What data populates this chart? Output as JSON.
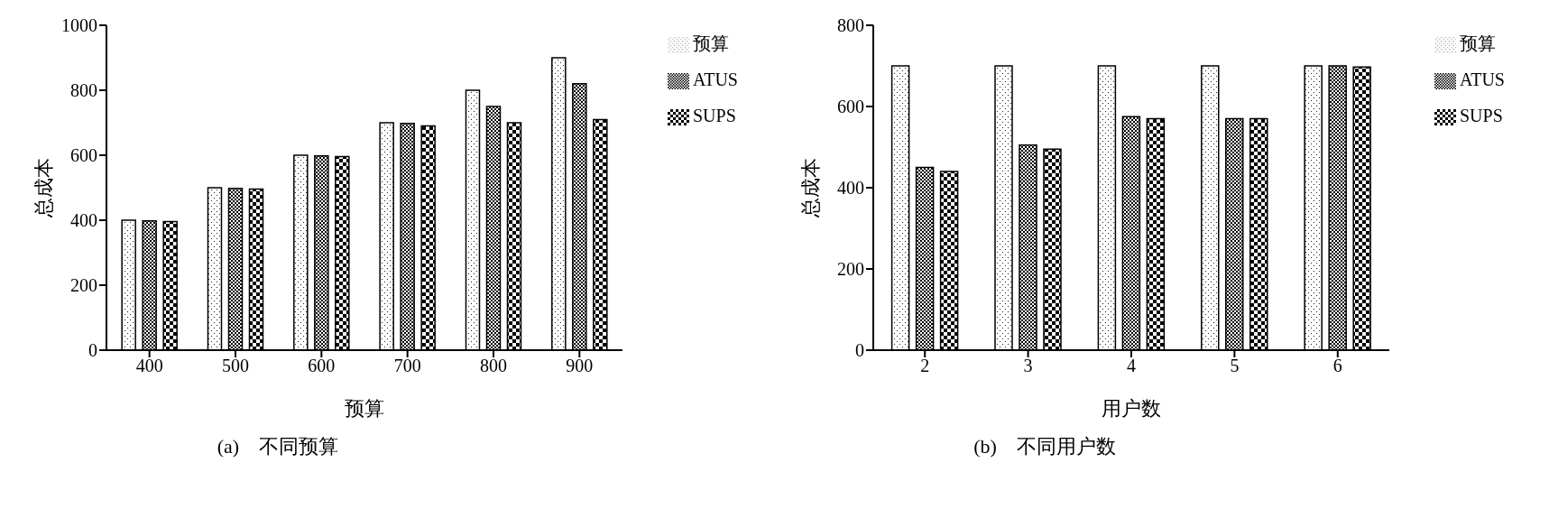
{
  "chart_data": [
    {
      "type": "bar",
      "xlabel": "预算",
      "ylabel": "总成本",
      "annotations": [
        "(a)　不同预算"
      ],
      "categories": [
        "400",
        "500",
        "600",
        "700",
        "800",
        "900"
      ],
      "ylim": [
        0,
        1000
      ],
      "yticks": [
        0,
        200,
        400,
        600,
        800,
        1000
      ],
      "grid": false,
      "legend": "top right",
      "series": [
        {
          "name": "预算",
          "color": "#000000",
          "values": [
            400,
            500,
            600,
            700,
            800,
            900
          ]
        },
        {
          "name": "ATUS",
          "color": "#000000",
          "values": [
            398,
            498,
            598,
            698,
            750,
            820
          ]
        },
        {
          "name": "SUPS",
          "color": "#000000",
          "values": [
            396,
            496,
            596,
            690,
            700,
            710
          ]
        }
      ]
    },
    {
      "type": "bar",
      "xlabel": "用户数",
      "ylabel": "总成本",
      "annotations": [
        "(b)　不同用户数"
      ],
      "categories": [
        "2",
        "3",
        "4",
        "5",
        "6"
      ],
      "ylim": [
        0,
        800
      ],
      "yticks": [
        0,
        200,
        400,
        600,
        800
      ],
      "grid": false,
      "legend": "top right",
      "series": [
        {
          "name": "预算",
          "color": "#000000",
          "values": [
            700,
            700,
            700,
            700,
            700
          ]
        },
        {
          "name": "ATUS",
          "color": "#000000",
          "values": [
            450,
            505,
            575,
            570,
            700
          ]
        },
        {
          "name": "SUPS",
          "color": "#000000",
          "values": [
            440,
            495,
            570,
            570,
            697
          ]
        }
      ]
    }
  ]
}
